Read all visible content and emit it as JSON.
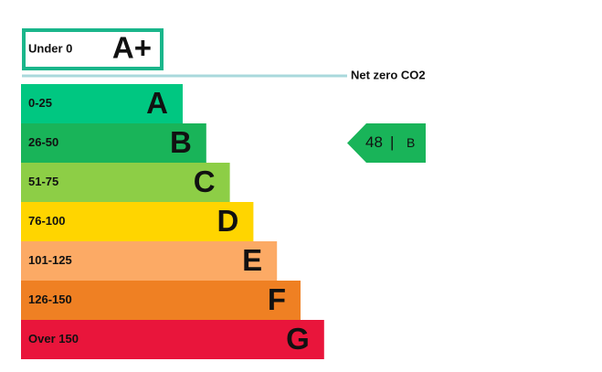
{
  "top_band": {
    "label": "Under 0",
    "letter": "A+",
    "color": "#1ab68b"
  },
  "net_zero": {
    "label": "Net zero CO2",
    "color": "#a9d8dc"
  },
  "bands": [
    {
      "range": "0-25",
      "letter": "A",
      "color": "#00c781"
    },
    {
      "range": "26-50",
      "letter": "B",
      "color": "#19b459"
    },
    {
      "range": "51-75",
      "letter": "C",
      "color": "#8dce46"
    },
    {
      "range": "76-100",
      "letter": "D",
      "color": "#ffd500"
    },
    {
      "range": "101-125",
      "letter": "E",
      "color": "#fcaa65"
    },
    {
      "range": "126-150",
      "letter": "F",
      "color": "#ef8023"
    },
    {
      "range": "Over 150",
      "letter": "G",
      "color": "#e9153b"
    }
  ],
  "current": {
    "score": 48,
    "separator": "|",
    "letter": "B",
    "band": 1
  }
}
